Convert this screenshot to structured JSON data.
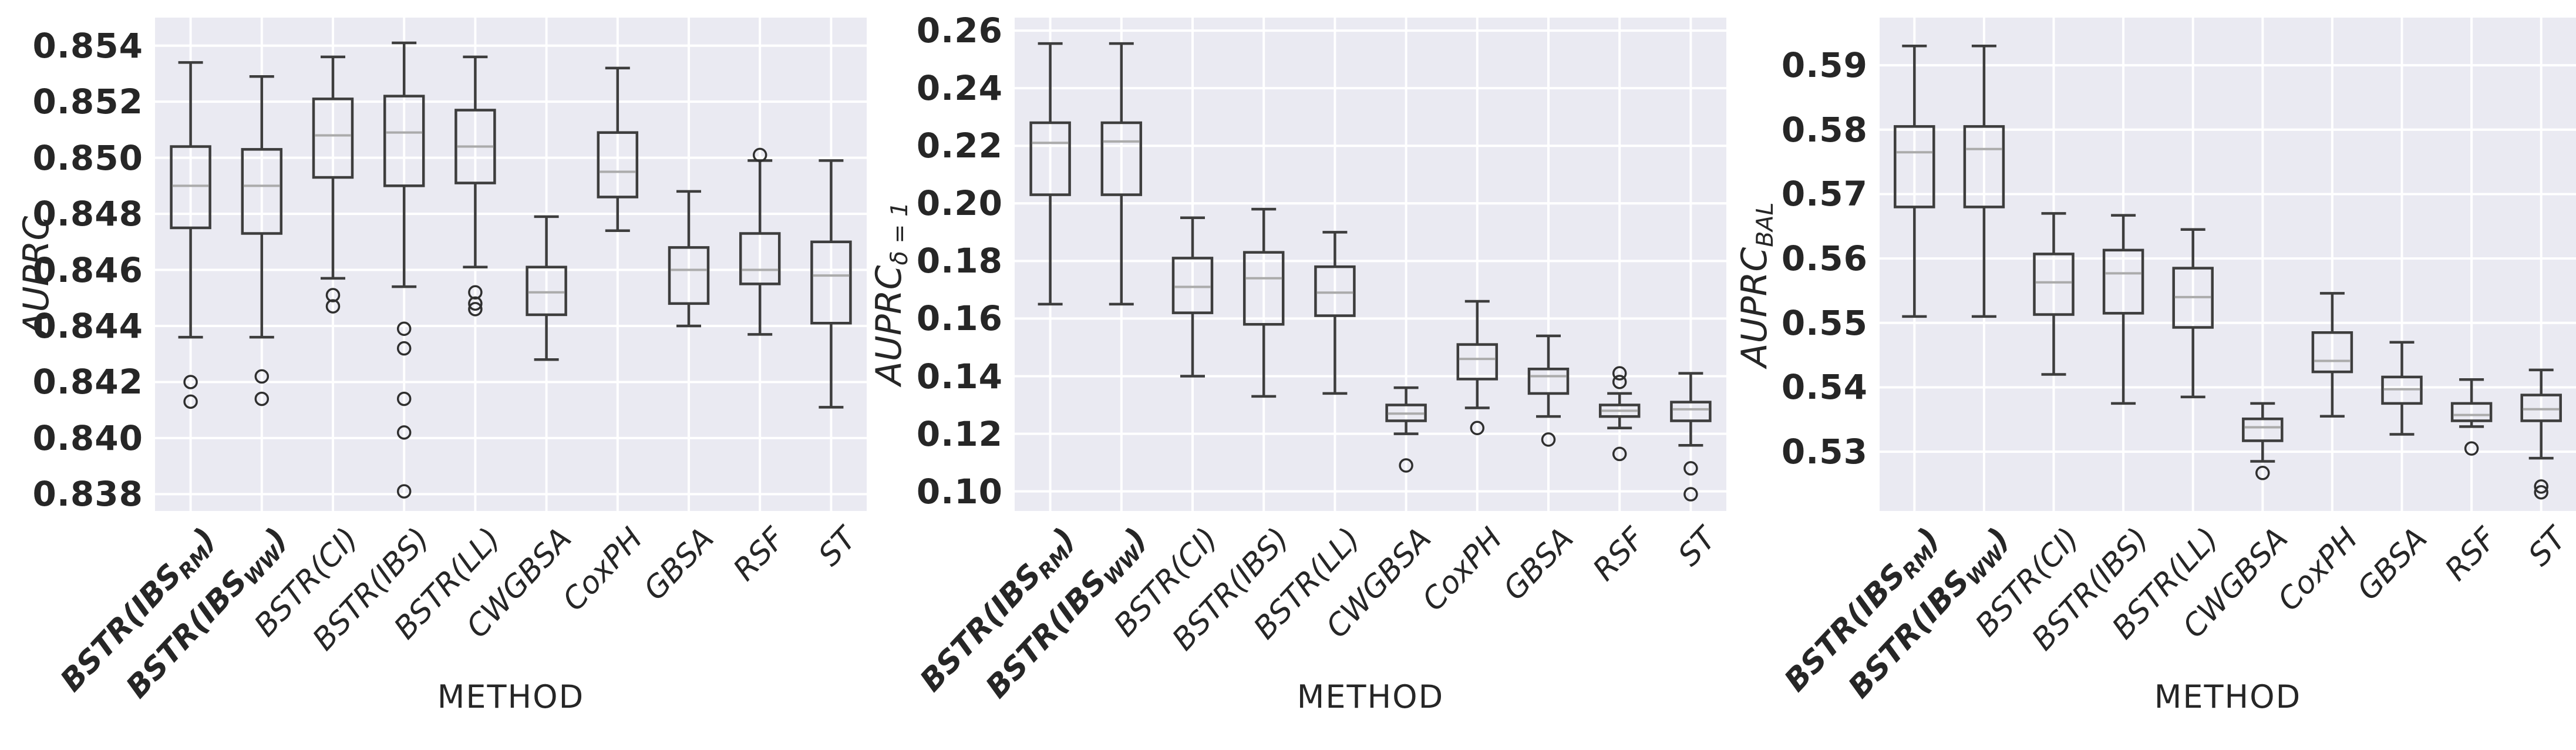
{
  "figure": {
    "xlabel": "METHOD",
    "title": ""
  },
  "style": {
    "figure_bg": "#ffffff",
    "axes_bg": "#eaeaf2",
    "grid_color": "#ffffff",
    "box_edge_color": "#3d3d3d",
    "median_color": "#ababab",
    "flier_edge_color": "#2f2f2f",
    "text_color": "#262626"
  },
  "methods_plain": [
    "BSTR(IBS_RM)",
    "BSTR(IBS_WW)",
    "BSTR(CI)",
    "BSTR(IBS)",
    "BSTR(LL)",
    "CWGBSA",
    "CoxPH",
    "GBSA",
    "RSF",
    "ST"
  ],
  "methods_rich": [
    {
      "slug": "bstr-ibs-rm",
      "bold": true,
      "parts": [
        {
          "t": "BSTR(IBS"
        },
        {
          "t": "RM",
          "sub": true
        },
        {
          "t": ")"
        }
      ]
    },
    {
      "slug": "bstr-ibs-ww",
      "bold": true,
      "parts": [
        {
          "t": "BSTR(IBS"
        },
        {
          "t": "WW",
          "sub": true
        },
        {
          "t": ")"
        }
      ]
    },
    {
      "slug": "bstr-ci",
      "bold": false,
      "parts": [
        {
          "t": "BSTR(CI)"
        }
      ]
    },
    {
      "slug": "bstr-ibs",
      "bold": false,
      "parts": [
        {
          "t": "BSTR(IBS)"
        }
      ]
    },
    {
      "slug": "bstr-ll",
      "bold": false,
      "parts": [
        {
          "t": "BSTR(LL)"
        }
      ]
    },
    {
      "slug": "cwgbsa",
      "bold": false,
      "parts": [
        {
          "t": "CWGBSA"
        }
      ]
    },
    {
      "slug": "coxph",
      "bold": false,
      "parts": [
        {
          "t": "CoxPH"
        }
      ]
    },
    {
      "slug": "gbsa",
      "bold": false,
      "parts": [
        {
          "t": "GBSA"
        }
      ]
    },
    {
      "slug": "rsf",
      "bold": false,
      "parts": [
        {
          "t": "RSF"
        }
      ]
    },
    {
      "slug": "st",
      "bold": false,
      "parts": [
        {
          "t": "ST"
        }
      ]
    }
  ],
  "chart_data": [
    {
      "type": "boxplot",
      "id": "auprc",
      "ylabel": {
        "main": "AUPRC",
        "sub": ""
      },
      "xlabel": "METHOD",
      "grid": true,
      "categories": [
        "BSTR(IBS_RM)",
        "BSTR(IBS_WW)",
        "BSTR(CI)",
        "BSTR(IBS)",
        "BSTR(LL)",
        "CWGBSA",
        "CoxPH",
        "GBSA",
        "RSF",
        "ST"
      ],
      "ylim": [
        0.8374,
        0.855
      ],
      "yticks": [
        0.854,
        0.852,
        0.85,
        0.848,
        0.846,
        0.844,
        0.842,
        0.84,
        0.838
      ],
      "ytick_labels": [
        "0.854",
        "0.852",
        "0.850",
        "0.848",
        "0.846",
        "0.844",
        "0.842",
        "0.840",
        "0.838"
      ],
      "boxes": [
        {
          "method": "BSTR(IBS_RM)",
          "whislo": 0.8436,
          "q1": 0.8475,
          "med": 0.849,
          "q3": 0.8504,
          "whishi": 0.8534,
          "fliers": [
            0.842,
            0.8413
          ]
        },
        {
          "method": "BSTR(IBS_WW)",
          "whislo": 0.8436,
          "q1": 0.8473,
          "med": 0.849,
          "q3": 0.8503,
          "whishi": 0.8529,
          "fliers": [
            0.8422,
            0.8414
          ]
        },
        {
          "method": "BSTR(CI)",
          "whislo": 0.8457,
          "q1": 0.8493,
          "med": 0.8508,
          "q3": 0.8521,
          "whishi": 0.8536,
          "fliers": [
            0.8451,
            0.8447
          ]
        },
        {
          "method": "BSTR(IBS)",
          "whislo": 0.8454,
          "q1": 0.849,
          "med": 0.8509,
          "q3": 0.8522,
          "whishi": 0.8541,
          "fliers": [
            0.8439,
            0.8432,
            0.8414,
            0.8402,
            0.8381
          ]
        },
        {
          "method": "BSTR(LL)",
          "whislo": 0.8461,
          "q1": 0.8491,
          "med": 0.8504,
          "q3": 0.8517,
          "whishi": 0.8536,
          "fliers": [
            0.8452,
            0.8448,
            0.8446
          ]
        },
        {
          "method": "CWGBSA",
          "whislo": 0.8428,
          "q1": 0.8444,
          "med": 0.8452,
          "q3": 0.8461,
          "whishi": 0.8479,
          "fliers": []
        },
        {
          "method": "CoxPH",
          "whislo": 0.8474,
          "q1": 0.8486,
          "med": 0.8495,
          "q3": 0.8509,
          "whishi": 0.8532,
          "fliers": []
        },
        {
          "method": "GBSA",
          "whislo": 0.844,
          "q1": 0.8448,
          "med": 0.846,
          "q3": 0.8468,
          "whishi": 0.8488,
          "fliers": []
        },
        {
          "method": "RSF",
          "whislo": 0.8437,
          "q1": 0.8455,
          "med": 0.846,
          "q3": 0.8473,
          "whishi": 0.8499,
          "fliers": [
            0.8501
          ]
        },
        {
          "method": "ST",
          "whislo": 0.8411,
          "q1": 0.8441,
          "med": 0.8458,
          "q3": 0.847,
          "whishi": 0.8499,
          "fliers": []
        }
      ]
    },
    {
      "type": "boxplot",
      "id": "auprc-delta-1",
      "ylabel": {
        "main": "AUPRC",
        "sub": "δ = 1"
      },
      "xlabel": "METHOD",
      "grid": true,
      "categories": [
        "BSTR(IBS_RM)",
        "BSTR(IBS_WW)",
        "BSTR(CI)",
        "BSTR(IBS)",
        "BSTR(LL)",
        "CWGBSA",
        "CoxPH",
        "GBSA",
        "RSF",
        "ST"
      ],
      "ylim": [
        0.0932,
        0.2645
      ],
      "yticks": [
        0.26,
        0.24,
        0.22,
        0.2,
        0.18,
        0.16,
        0.14,
        0.12,
        0.1
      ],
      "ytick_labels": [
        "0.26",
        "0.24",
        "0.22",
        "0.20",
        "0.18",
        "0.16",
        "0.14",
        "0.12",
        "0.10"
      ],
      "boxes": [
        {
          "method": "BSTR(IBS_RM)",
          "whislo": 0.165,
          "q1": 0.203,
          "med": 0.221,
          "q3": 0.228,
          "whishi": 0.2555,
          "fliers": []
        },
        {
          "method": "BSTR(IBS_WW)",
          "whislo": 0.165,
          "q1": 0.203,
          "med": 0.2215,
          "q3": 0.228,
          "whishi": 0.2555,
          "fliers": []
        },
        {
          "method": "BSTR(CI)",
          "whislo": 0.14,
          "q1": 0.162,
          "med": 0.171,
          "q3": 0.181,
          "whishi": 0.195,
          "fliers": []
        },
        {
          "method": "BSTR(IBS)",
          "whislo": 0.133,
          "q1": 0.158,
          "med": 0.174,
          "q3": 0.183,
          "whishi": 0.198,
          "fliers": []
        },
        {
          "method": "BSTR(LL)",
          "whislo": 0.134,
          "q1": 0.161,
          "med": 0.169,
          "q3": 0.178,
          "whishi": 0.19,
          "fliers": []
        },
        {
          "method": "CWGBSA",
          "whislo": 0.12,
          "q1": 0.1245,
          "med": 0.127,
          "q3": 0.13,
          "whishi": 0.136,
          "fliers": [
            0.109
          ]
        },
        {
          "method": "CoxPH",
          "whislo": 0.129,
          "q1": 0.139,
          "med": 0.146,
          "q3": 0.151,
          "whishi": 0.166,
          "fliers": [
            0.122
          ]
        },
        {
          "method": "GBSA",
          "whislo": 0.126,
          "q1": 0.134,
          "med": 0.14,
          "q3": 0.1425,
          "whishi": 0.154,
          "fliers": [
            0.118
          ]
        },
        {
          "method": "RSF",
          "whislo": 0.122,
          "q1": 0.126,
          "med": 0.128,
          "q3": 0.13,
          "whishi": 0.134,
          "fliers": [
            0.141,
            0.138,
            0.113
          ]
        },
        {
          "method": "ST",
          "whislo": 0.116,
          "q1": 0.1245,
          "med": 0.1285,
          "q3": 0.131,
          "whishi": 0.141,
          "fliers": [
            0.108,
            0.099
          ]
        }
      ]
    },
    {
      "type": "boxplot",
      "id": "auprc-bal",
      "ylabel": {
        "main": "AUPRC",
        "sub": "BAL"
      },
      "xlabel": "METHOD",
      "grid": true,
      "categories": [
        "BSTR(IBS_RM)",
        "BSTR(IBS_WW)",
        "BSTR(CI)",
        "BSTR(IBS)",
        "BSTR(LL)",
        "CWGBSA",
        "CoxPH",
        "GBSA",
        "RSF",
        "ST"
      ],
      "ylim": [
        0.5208,
        0.5974
      ],
      "yticks": [
        0.59,
        0.58,
        0.57,
        0.56,
        0.55,
        0.54,
        0.53
      ],
      "ytick_labels": [
        "0.59",
        "0.58",
        "0.57",
        "0.56",
        "0.55",
        "0.54",
        "0.53"
      ],
      "boxes": [
        {
          "method": "BSTR(IBS_RM)",
          "whislo": 0.551,
          "q1": 0.568,
          "med": 0.5765,
          "q3": 0.5805,
          "whishi": 0.593,
          "fliers": []
        },
        {
          "method": "BSTR(IBS_WW)",
          "whislo": 0.551,
          "q1": 0.568,
          "med": 0.577,
          "q3": 0.5805,
          "whishi": 0.593,
          "fliers": []
        },
        {
          "method": "BSTR(CI)",
          "whislo": 0.542,
          "q1": 0.5513,
          "med": 0.5563,
          "q3": 0.5607,
          "whishi": 0.567,
          "fliers": []
        },
        {
          "method": "BSTR(IBS)",
          "whislo": 0.5375,
          "q1": 0.5515,
          "med": 0.5577,
          "q3": 0.5613,
          "whishi": 0.5667,
          "fliers": []
        },
        {
          "method": "BSTR(LL)",
          "whislo": 0.5385,
          "q1": 0.5493,
          "med": 0.554,
          "q3": 0.5585,
          "whishi": 0.5645,
          "fliers": []
        },
        {
          "method": "CWGBSA",
          "whislo": 0.5285,
          "q1": 0.5317,
          "med": 0.5338,
          "q3": 0.5351,
          "whishi": 0.5375,
          "fliers": [
            0.5267
          ]
        },
        {
          "method": "CoxPH",
          "whislo": 0.5355,
          "q1": 0.5424,
          "med": 0.5441,
          "q3": 0.5485,
          "whishi": 0.5546,
          "fliers": []
        },
        {
          "method": "GBSA",
          "whislo": 0.5327,
          "q1": 0.5375,
          "med": 0.5397,
          "q3": 0.5416,
          "whishi": 0.547,
          "fliers": []
        },
        {
          "method": "RSF",
          "whislo": 0.5339,
          "q1": 0.5348,
          "med": 0.5357,
          "q3": 0.5375,
          "whishi": 0.5412,
          "fliers": [
            0.5305
          ]
        },
        {
          "method": "ST",
          "whislo": 0.529,
          "q1": 0.5348,
          "med": 0.5366,
          "q3": 0.5388,
          "whishi": 0.5427,
          "fliers": [
            0.5246,
            0.5237
          ]
        }
      ]
    }
  ]
}
